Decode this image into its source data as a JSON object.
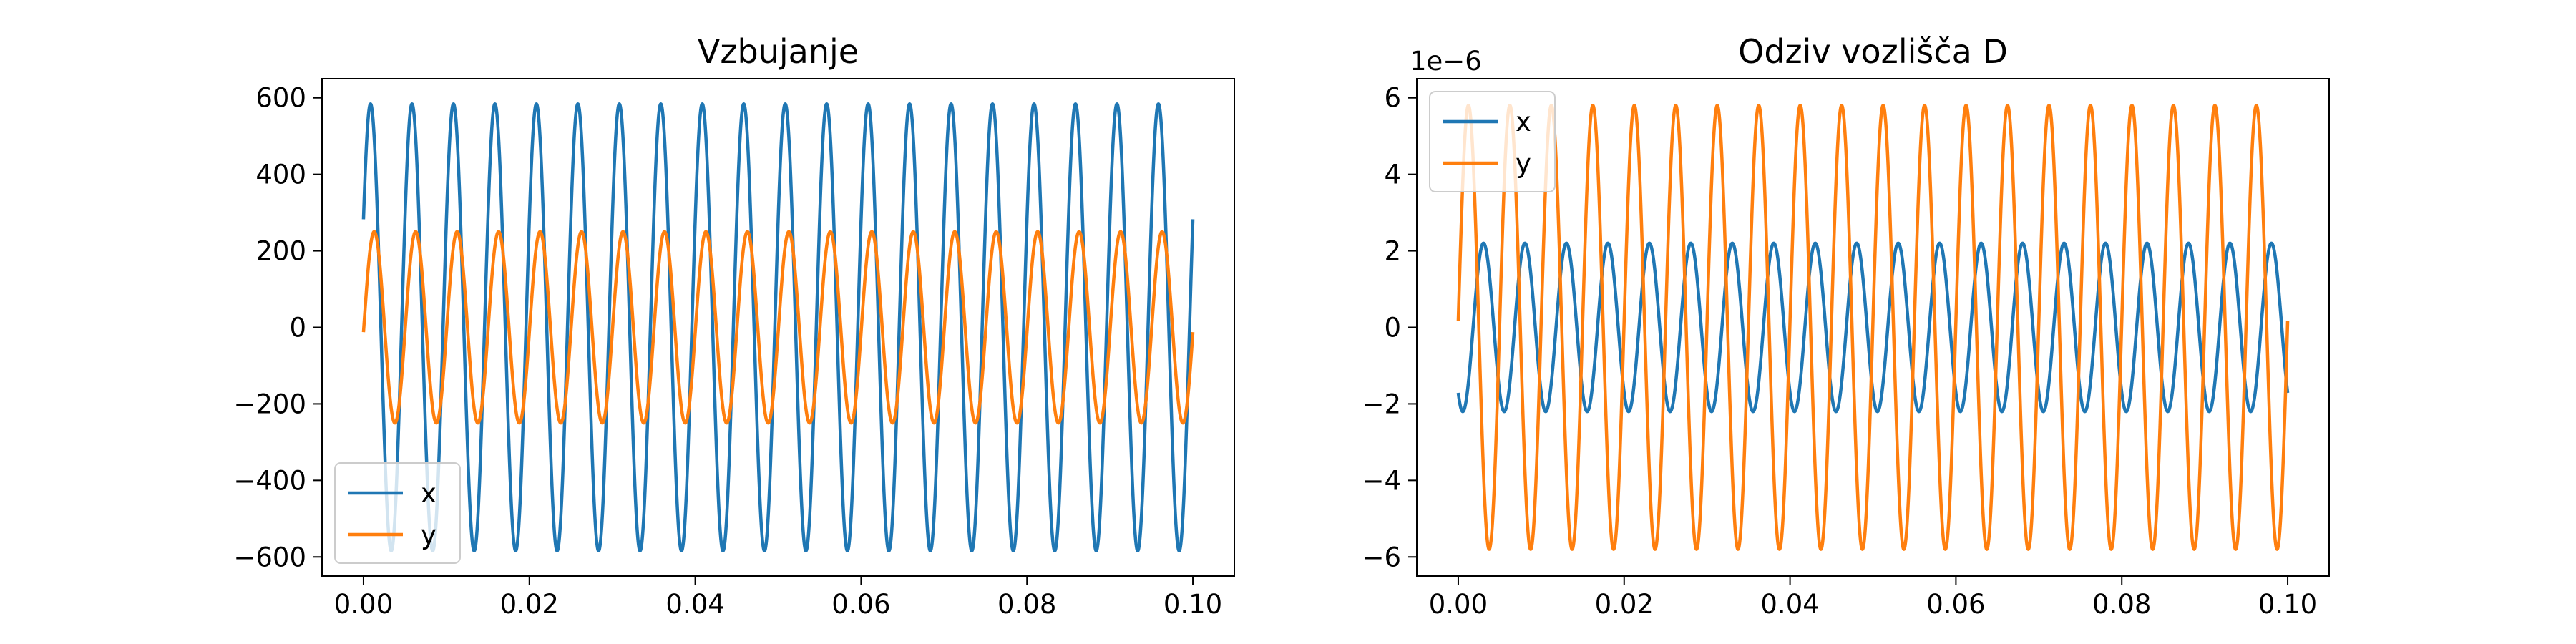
{
  "chart_data": [
    {
      "type": "line",
      "title": "Vzbujanje",
      "xlabel": "",
      "ylabel": "",
      "xlim": [
        -0.005,
        0.105
      ],
      "ylim": [
        -650,
        650
      ],
      "x_ticks": [
        "0.00",
        "0.02",
        "0.04",
        "0.06",
        "0.08",
        "0.10"
      ],
      "y_ticks": [
        "−600",
        "−400",
        "−200",
        "0",
        "200",
        "400",
        "600"
      ],
      "legend_position": "lower-left",
      "series": [
        {
          "name": "x",
          "color": "#1f77b4",
          "amplitude": 584,
          "frequency_hz": 200,
          "phase_rad": 0.505,
          "x_range": [
            0,
            0.1
          ]
        },
        {
          "name": "y",
          "color": "#ff7f0e",
          "amplitude": 250,
          "frequency_hz": 200,
          "phase_rad": -0.05,
          "x_range": [
            0,
            0.1
          ]
        }
      ]
    },
    {
      "type": "line",
      "title": "Odziv vozlišča D",
      "xlabel": "",
      "ylabel": "",
      "offset_label": "1e−6",
      "xlim": [
        -0.005,
        0.105
      ],
      "ylim": [
        -6.5,
        6.5
      ],
      "x_ticks": [
        "0.00",
        "0.02",
        "0.04",
        "0.06",
        "0.08",
        "0.10"
      ],
      "y_ticks": [
        "−6",
        "−4",
        "−2",
        "0",
        "2",
        "4",
        "6"
      ],
      "legend_position": "upper-left",
      "series": [
        {
          "name": "x",
          "color": "#1f77b4",
          "amplitude": 2.2,
          "frequency_hz": 200,
          "phase_rad": -2.25,
          "x_range": [
            0,
            0.1
          ]
        },
        {
          "name": "y",
          "color": "#ff7f0e",
          "amplitude": 5.8,
          "frequency_hz": 200,
          "phase_rad": 0.03,
          "x_range": [
            0,
            0.1
          ]
        }
      ]
    }
  ]
}
